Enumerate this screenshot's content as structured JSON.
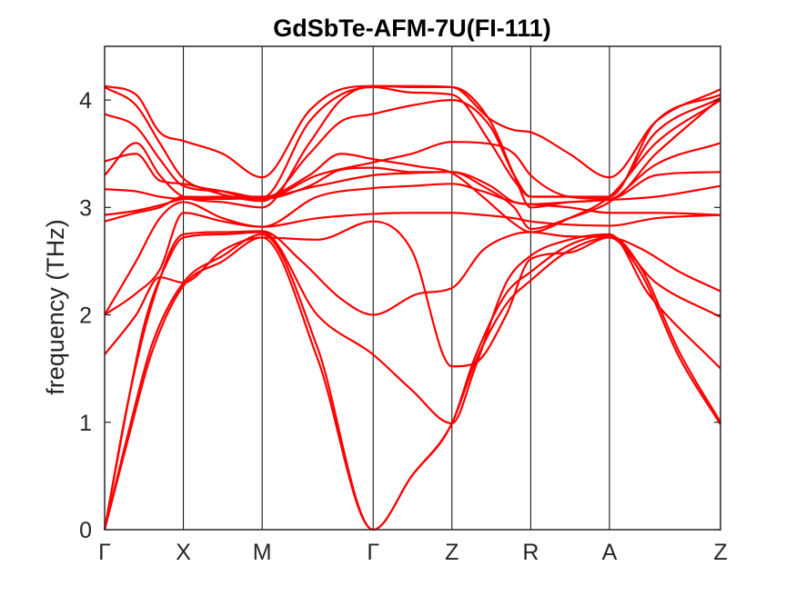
{
  "chart_data": {
    "type": "line",
    "title": "GdSbTe-AFM-7U(FI-111)",
    "xlabel": "",
    "ylabel": "frequency (THz)",
    "ylim": [
      0,
      4.5
    ],
    "yticks": [
      0,
      1,
      2,
      3,
      4
    ],
    "line_color": "#ff0000",
    "kpath": [
      {
        "label": "Γ",
        "pos": 0.0
      },
      {
        "label": "X",
        "pos": 1.0
      },
      {
        "label": "M",
        "pos": 2.0
      },
      {
        "label": "Γ",
        "pos": 3.41
      },
      {
        "label": "Z",
        "pos": 4.41
      },
      {
        "label": "R",
        "pos": 5.41
      },
      {
        "label": "A",
        "pos": 6.41
      },
      {
        "label": "Z",
        "pos": 7.82
      }
    ],
    "bands": [
      {
        "points": [
          [
            0,
            0
          ],
          [
            0.3,
            0.85
          ],
          [
            0.6,
            1.65
          ],
          [
            1,
            2.27
          ],
          [
            1.5,
            2.5
          ],
          [
            2,
            2.72
          ],
          [
            2.7,
            1.6
          ],
          [
            3.41,
            0
          ],
          [
            3.9,
            0.5
          ],
          [
            4.41,
            0.99
          ],
          [
            4.7,
            1.55
          ],
          [
            5.1,
            2.1
          ],
          [
            5.41,
            2.32
          ],
          [
            5.9,
            2.6
          ],
          [
            6.41,
            2.72
          ],
          [
            6.8,
            2.4
          ],
          [
            7.3,
            1.6
          ],
          [
            7.82,
            0.98
          ]
        ]
      },
      {
        "points": [
          [
            0,
            0
          ],
          [
            0.3,
            0.9
          ],
          [
            0.6,
            1.72
          ],
          [
            1,
            2.3
          ],
          [
            1.5,
            2.55
          ],
          [
            2,
            2.75
          ],
          [
            2.7,
            1.7
          ],
          [
            3.41,
            0
          ],
          [
            3.9,
            0.5
          ],
          [
            4.41,
            0.99
          ],
          [
            4.7,
            1.6
          ],
          [
            5.1,
            2.2
          ],
          [
            5.41,
            2.4
          ],
          [
            5.9,
            2.65
          ],
          [
            6.41,
            2.74
          ],
          [
            6.8,
            2.45
          ],
          [
            7.3,
            1.65
          ],
          [
            7.82,
            1.0
          ]
        ]
      },
      {
        "points": [
          [
            0,
            0
          ],
          [
            0.25,
            1.0
          ],
          [
            0.5,
            1.9
          ],
          [
            0.8,
            2.5
          ],
          [
            1,
            2.72
          ],
          [
            1.5,
            2.75
          ],
          [
            2,
            2.77
          ],
          [
            2.7,
            2.0
          ],
          [
            3.41,
            1.63
          ],
          [
            3.9,
            1.3
          ],
          [
            4.41,
            0.99
          ],
          [
            4.7,
            1.5
          ],
          [
            5.1,
            2.3
          ],
          [
            5.41,
            2.55
          ],
          [
            5.9,
            2.7
          ],
          [
            6.41,
            2.75
          ],
          [
            6.9,
            2.2
          ],
          [
            7.82,
            1.5
          ]
        ]
      },
      {
        "points": [
          [
            0,
            0
          ],
          [
            0.3,
            1.2
          ],
          [
            0.6,
            2.1
          ],
          [
            1,
            2.75
          ],
          [
            1.5,
            2.77
          ],
          [
            2,
            2.78
          ],
          [
            2.5,
            2.5
          ],
          [
            3.0,
            2.15
          ],
          [
            3.41,
            2.0
          ],
          [
            4.0,
            2.2
          ],
          [
            4.41,
            2.25
          ],
          [
            4.8,
            2.6
          ],
          [
            5.2,
            2.75
          ],
          [
            5.41,
            2.77
          ],
          [
            5.9,
            2.73
          ],
          [
            6.41,
            2.72
          ],
          [
            7.0,
            2.3
          ],
          [
            7.82,
            1.98
          ]
        ]
      },
      {
        "points": [
          [
            0,
            1.63
          ],
          [
            0.4,
            2.0
          ],
          [
            0.7,
            2.35
          ],
          [
            1,
            2.3
          ],
          [
            1.5,
            2.6
          ],
          [
            2,
            2.72
          ],
          [
            2.7,
            2.7
          ],
          [
            3.41,
            2.87
          ],
          [
            3.9,
            2.6
          ],
          [
            4.41,
            1.52
          ],
          [
            4.7,
            1.55
          ],
          [
            5.1,
            2.0
          ],
          [
            5.41,
            2.52
          ],
          [
            5.9,
            2.58
          ],
          [
            6.41,
            2.72
          ],
          [
            6.8,
            2.62
          ],
          [
            7.3,
            2.4
          ],
          [
            7.82,
            2.22
          ]
        ]
      },
      {
        "points": [
          [
            0,
            2.0
          ],
          [
            0.4,
            2.2
          ],
          [
            0.7,
            2.42
          ],
          [
            1,
            2.95
          ],
          [
            1.5,
            2.87
          ],
          [
            2,
            2.82
          ],
          [
            2.7,
            2.9
          ],
          [
            3.41,
            2.94
          ],
          [
            3.9,
            2.95
          ],
          [
            4.41,
            2.95
          ],
          [
            4.8,
            2.93
          ],
          [
            5.2,
            2.9
          ],
          [
            5.41,
            2.87
          ],
          [
            5.9,
            2.84
          ],
          [
            6.41,
            2.83
          ],
          [
            7.0,
            2.9
          ],
          [
            7.82,
            2.93
          ]
        ]
      },
      {
        "points": [
          [
            0,
            2.0
          ],
          [
            0.4,
            2.5
          ],
          [
            0.7,
            2.9
          ],
          [
            1,
            3.05
          ],
          [
            1.5,
            2.9
          ],
          [
            2,
            2.82
          ],
          [
            2.7,
            3.1
          ],
          [
            3.41,
            3.18
          ],
          [
            3.9,
            3.2
          ],
          [
            4.41,
            3.22
          ],
          [
            4.8,
            3.15
          ],
          [
            5.2,
            3.05
          ],
          [
            5.41,
            3.03
          ],
          [
            5.9,
            3.05
          ],
          [
            6.41,
            3.07
          ],
          [
            7.0,
            3.1
          ],
          [
            7.82,
            3.2
          ]
        ]
      },
      {
        "points": [
          [
            0,
            2.87
          ],
          [
            0.4,
            2.95
          ],
          [
            0.7,
            3.0
          ],
          [
            1,
            3.1
          ],
          [
            1.5,
            3.09
          ],
          [
            2,
            3.08
          ],
          [
            2.7,
            3.3
          ],
          [
            3.41,
            3.42
          ],
          [
            3.9,
            3.5
          ],
          [
            4.41,
            3.61
          ],
          [
            4.8,
            3.6
          ],
          [
            5.2,
            3.5
          ],
          [
            5.41,
            3.3
          ],
          [
            5.9,
            3.1
          ],
          [
            6.41,
            3.08
          ],
          [
            7.0,
            3.3
          ],
          [
            7.82,
            3.33
          ]
        ]
      },
      {
        "points": [
          [
            0,
            2.93
          ],
          [
            0.4,
            2.97
          ],
          [
            0.7,
            3.02
          ],
          [
            1,
            3.08
          ],
          [
            1.5,
            3.1
          ],
          [
            2,
            3.1
          ],
          [
            2.7,
            3.2
          ],
          [
            3.41,
            3.3
          ],
          [
            3.9,
            3.32
          ],
          [
            4.41,
            3.33
          ],
          [
            4.8,
            3.2
          ],
          [
            5.2,
            3.0
          ],
          [
            5.41,
            2.8
          ],
          [
            5.9,
            2.9
          ],
          [
            6.41,
            3.05
          ],
          [
            7.0,
            3.4
          ],
          [
            7.82,
            3.6
          ]
        ]
      },
      {
        "points": [
          [
            0,
            3.17
          ],
          [
            0.4,
            3.15
          ],
          [
            0.7,
            3.1
          ],
          [
            1,
            3.08
          ],
          [
            1.5,
            3.08
          ],
          [
            2,
            3.09
          ],
          [
            2.6,
            3.3
          ],
          [
            3.0,
            3.5
          ],
          [
            3.41,
            3.45
          ],
          [
            4.0,
            3.38
          ],
          [
            4.41,
            3.32
          ],
          [
            4.8,
            3.1
          ],
          [
            5.2,
            2.85
          ],
          [
            5.41,
            2.77
          ],
          [
            5.9,
            2.9
          ],
          [
            6.41,
            3.1
          ],
          [
            7.0,
            3.6
          ],
          [
            7.82,
            4.0
          ]
        ]
      },
      {
        "points": [
          [
            0,
            3.3
          ],
          [
            0.4,
            3.6
          ],
          [
            0.7,
            3.3
          ],
          [
            1,
            3.1
          ],
          [
            1.5,
            3.05
          ],
          [
            2,
            3.0
          ],
          [
            2.6,
            3.6
          ],
          [
            3.0,
            4.0
          ],
          [
            3.41,
            4.13
          ],
          [
            3.9,
            4.12
          ],
          [
            4.41,
            4.12
          ],
          [
            4.9,
            3.8
          ],
          [
            5.2,
            3.3
          ],
          [
            5.41,
            3.0
          ],
          [
            5.9,
            3.05
          ],
          [
            6.41,
            3.1
          ],
          [
            7.0,
            3.7
          ],
          [
            7.82,
            4.02
          ]
        ]
      },
      {
        "points": [
          [
            0,
            3.43
          ],
          [
            0.4,
            3.5
          ],
          [
            0.7,
            3.25
          ],
          [
            1,
            3.22
          ],
          [
            1.5,
            3.12
          ],
          [
            2,
            3.06
          ],
          [
            2.6,
            3.5
          ],
          [
            3.0,
            3.8
          ],
          [
            3.41,
            3.87
          ],
          [
            3.9,
            3.95
          ],
          [
            4.41,
            4.0
          ],
          [
            4.9,
            3.75
          ],
          [
            5.2,
            3.3
          ],
          [
            5.41,
            3.1
          ],
          [
            5.9,
            3.1
          ],
          [
            6.41,
            3.08
          ],
          [
            7.0,
            3.5
          ],
          [
            7.82,
            4.02
          ]
        ]
      },
      {
        "points": [
          [
            0,
            3.87
          ],
          [
            0.4,
            3.75
          ],
          [
            0.7,
            3.45
          ],
          [
            1,
            3.2
          ],
          [
            1.5,
            3.15
          ],
          [
            2,
            3.09
          ],
          [
            2.6,
            3.8
          ],
          [
            3.0,
            4.05
          ],
          [
            3.41,
            4.12
          ],
          [
            3.9,
            4.07
          ],
          [
            4.41,
            4.05
          ],
          [
            4.9,
            3.6
          ],
          [
            5.2,
            3.25
          ],
          [
            5.41,
            3.1
          ],
          [
            5.9,
            3.1
          ],
          [
            6.41,
            3.1
          ],
          [
            7.0,
            3.8
          ],
          [
            7.82,
            4.05
          ]
        ]
      },
      {
        "points": [
          [
            0,
            4.13
          ],
          [
            0.4,
            4.05
          ],
          [
            0.7,
            3.7
          ],
          [
            1,
            3.62
          ],
          [
            1.5,
            3.5
          ],
          [
            2,
            3.28
          ],
          [
            2.6,
            3.9
          ],
          [
            3.0,
            4.1
          ],
          [
            3.41,
            4.13
          ],
          [
            3.9,
            4.13
          ],
          [
            4.41,
            4.12
          ],
          [
            4.9,
            3.82
          ],
          [
            5.2,
            3.72
          ],
          [
            5.41,
            3.7
          ],
          [
            5.9,
            3.5
          ],
          [
            6.41,
            3.28
          ],
          [
            7.0,
            3.8
          ],
          [
            7.82,
            4.1
          ]
        ]
      },
      {
        "points": [
          [
            0,
            4.12
          ],
          [
            0.4,
            3.95
          ],
          [
            0.7,
            3.6
          ],
          [
            1,
            3.27
          ],
          [
            1.5,
            3.15
          ],
          [
            2,
            3.08
          ],
          [
            2.6,
            3.2
          ],
          [
            3.0,
            3.35
          ],
          [
            3.41,
            3.37
          ],
          [
            3.9,
            3.33
          ],
          [
            4.41,
            3.33
          ],
          [
            4.9,
            3.2
          ],
          [
            5.2,
            3.05
          ],
          [
            5.41,
            3.03
          ],
          [
            5.9,
            3.0
          ],
          [
            6.41,
            2.95
          ],
          [
            7.0,
            2.95
          ],
          [
            7.82,
            2.93
          ]
        ]
      }
    ]
  }
}
